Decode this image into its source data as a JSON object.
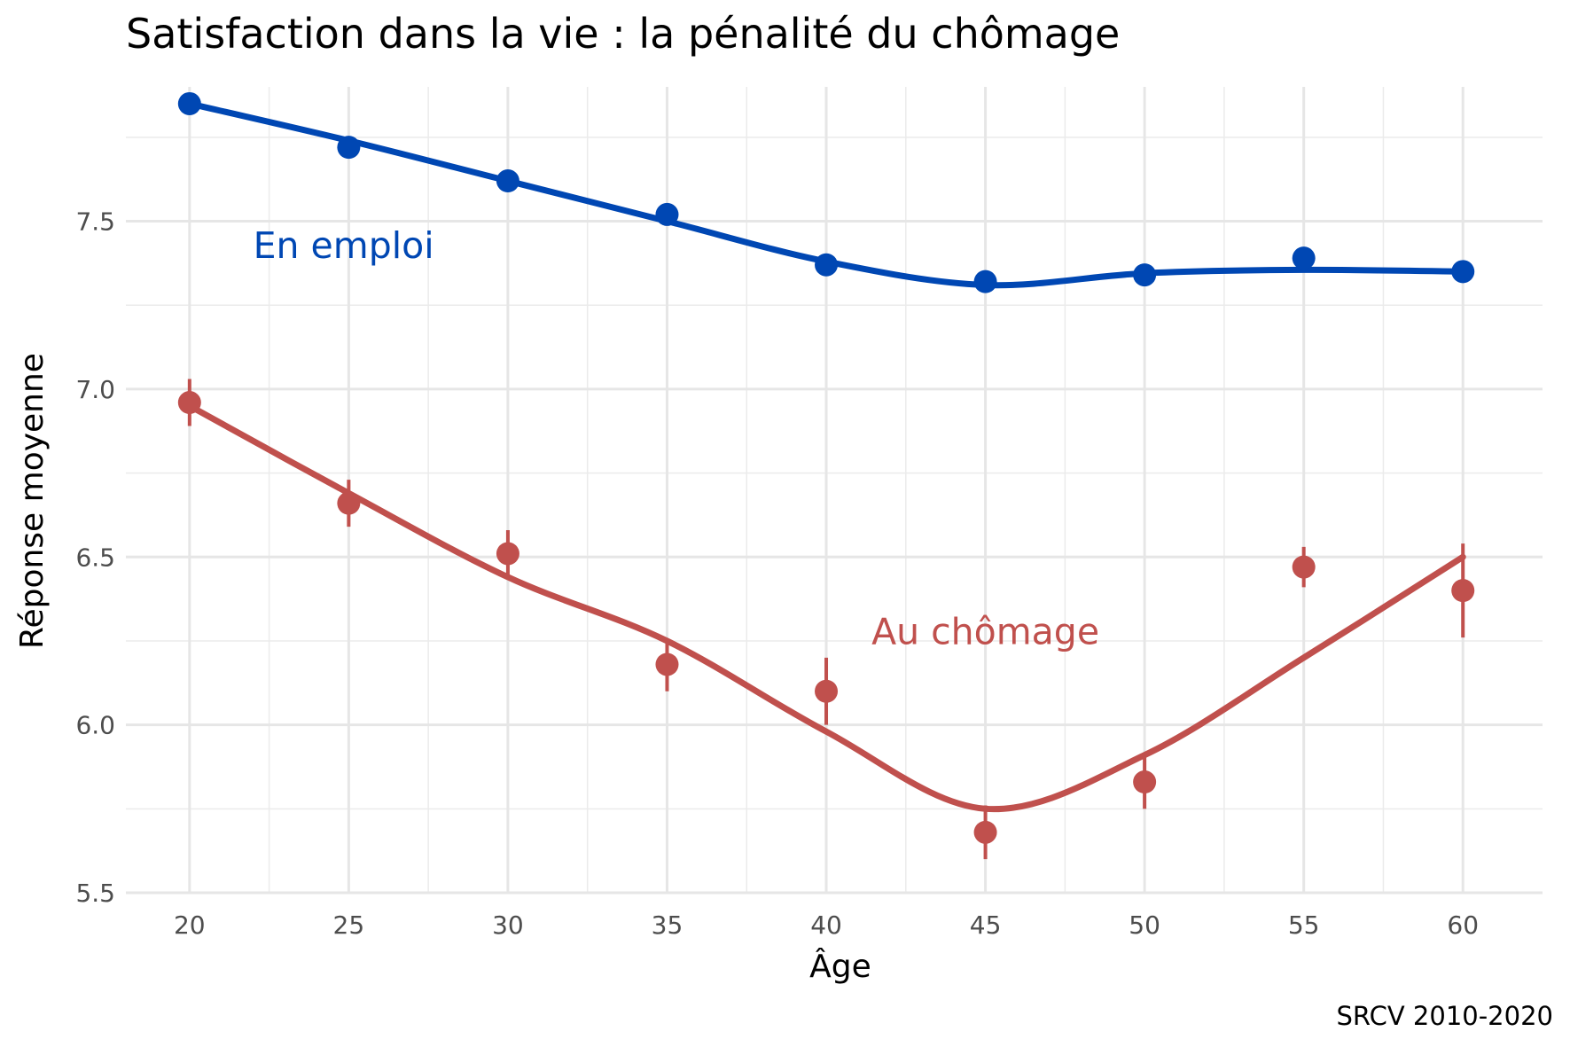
{
  "chart_data": {
    "type": "line",
    "title": "Satisfaction dans la vie : la pénalité du chômage",
    "xlabel": "Âge",
    "ylabel": "Réponse moyenne",
    "caption": "SRCV 2010-2020",
    "xlim": [
      18,
      62.5
    ],
    "ylim": [
      5.5,
      7.9
    ],
    "x_ticks": [
      20,
      25,
      30,
      35,
      40,
      45,
      50,
      55,
      60
    ],
    "y_ticks": [
      5.5,
      6.0,
      6.5,
      7.0,
      7.5
    ],
    "y_tick_labels": [
      "5.5",
      "6.0",
      "6.5",
      "7.0",
      "7.5"
    ],
    "grid": true,
    "legend": "none (direct labels)",
    "x": [
      20,
      25,
      30,
      35,
      40,
      45,
      50,
      55,
      60
    ],
    "series": [
      {
        "name": "En emploi",
        "color": "#0047b3",
        "values": [
          7.85,
          7.72,
          7.62,
          7.52,
          7.37,
          7.32,
          7.34,
          7.39,
          7.35
        ],
        "error_low": [
          7.84,
          7.71,
          7.61,
          7.51,
          7.36,
          7.31,
          7.33,
          7.38,
          7.33
        ],
        "error_high": [
          7.86,
          7.73,
          7.63,
          7.53,
          7.38,
          7.33,
          7.35,
          7.4,
          7.37
        ],
        "smooth": [
          7.85,
          7.74,
          7.62,
          7.5,
          7.38,
          7.31,
          7.345,
          7.355,
          7.35
        ]
      },
      {
        "name": "Au chômage",
        "color": "#c0504d",
        "values": [
          6.96,
          6.66,
          6.51,
          6.18,
          6.1,
          5.68,
          5.83,
          6.47,
          6.4
        ],
        "error_low": [
          6.89,
          6.59,
          6.44,
          6.1,
          6.0,
          5.6,
          5.75,
          6.41,
          6.26
        ],
        "error_high": [
          7.03,
          6.73,
          6.58,
          6.25,
          6.2,
          5.76,
          5.91,
          6.53,
          6.54
        ],
        "smooth": [
          6.95,
          6.69,
          6.44,
          6.25,
          5.98,
          5.75,
          5.91,
          6.2,
          6.5
        ]
      }
    ],
    "annotations": [
      {
        "text": "En emploi",
        "x": 22,
        "y": 7.39,
        "anchor": "start",
        "series": 0
      },
      {
        "text": "Au chômage",
        "x": 45,
        "y": 6.24,
        "anchor": "middle",
        "series": 1
      }
    ]
  }
}
